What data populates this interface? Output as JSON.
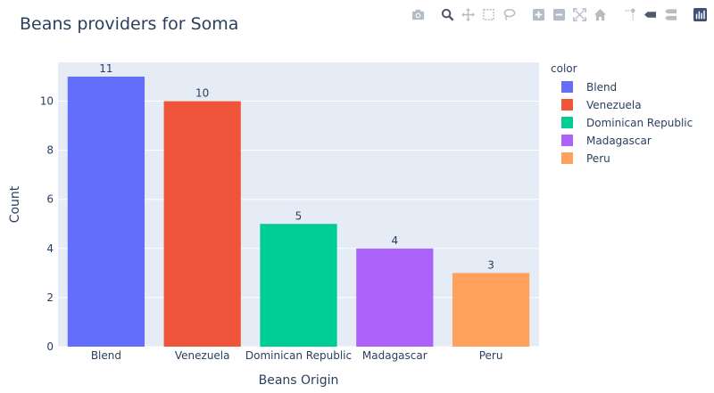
{
  "modebar": {
    "icons": [
      "camera-icon",
      "zoom-icon",
      "pan-icon",
      "box-select-icon",
      "lasso-icon",
      "zoom-in-icon",
      "zoom-out-icon",
      "autoscale-icon",
      "reset-axes-icon",
      "spike-lines-icon",
      "hover-closest-icon",
      "hover-compare-icon",
      "plotly-logo-icon"
    ]
  },
  "chart_data": {
    "type": "bar",
    "title": "Beans providers for Soma",
    "xlabel": "Beans Origin",
    "ylabel": "Count",
    "categories": [
      "Blend",
      "Venezuela",
      "Dominican Republic",
      "Madagascar",
      "Peru"
    ],
    "values": [
      11,
      10,
      5,
      4,
      3
    ],
    "data_labels": [
      "11",
      "10",
      "5",
      "4",
      "3"
    ],
    "colors": [
      "#636efa",
      "#ef553b",
      "#00cc96",
      "#ab63fa",
      "#ffa15a"
    ],
    "ylim": [
      0,
      11.58
    ],
    "yticks": [
      0,
      2,
      4,
      6,
      8,
      10
    ],
    "ytick_labels": [
      "0",
      "2",
      "4",
      "6",
      "8",
      "10"
    ],
    "grid": true,
    "plot_background": "#e5ecf6",
    "legend": {
      "title": "color",
      "placement": "right",
      "entries": [
        "Blend",
        "Venezuela",
        "Dominican Republic",
        "Madagascar",
        "Peru"
      ]
    }
  }
}
